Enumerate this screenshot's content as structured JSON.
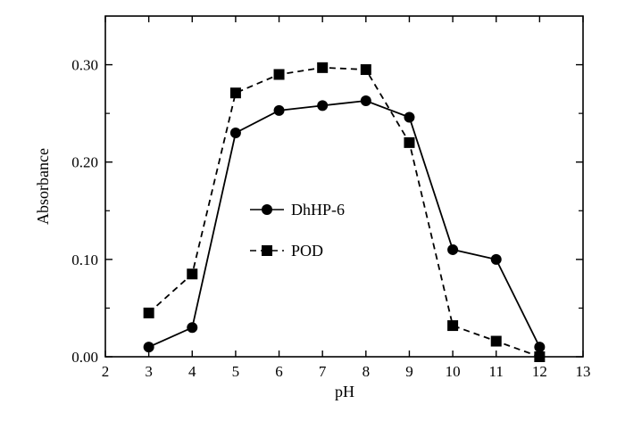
{
  "chart_data": {
    "type": "line",
    "xlabel": "pH",
    "ylabel": "Absorbance",
    "xlim": [
      2,
      13
    ],
    "ylim": [
      0,
      0.35
    ],
    "xticks": [
      2,
      3,
      4,
      5,
      6,
      7,
      8,
      9,
      10,
      11,
      12,
      13
    ],
    "yticks": [
      0,
      0.1,
      0.2,
      0.3
    ],
    "ytick_labels": [
      "0.00",
      "0.10",
      "0.20",
      "0.30"
    ],
    "grid": false,
    "legend_position": "center-left",
    "series": [
      {
        "name": "DhHP-6",
        "marker": "circle",
        "line_style": "solid",
        "color": "#000000",
        "x": [
          3,
          4,
          5,
          6,
          7,
          8,
          9,
          10,
          11,
          12
        ],
        "y": [
          0.01,
          0.03,
          0.23,
          0.253,
          0.258,
          0.263,
          0.246,
          0.11,
          0.1,
          0.01
        ]
      },
      {
        "name": "POD",
        "marker": "square",
        "line_style": "dashed",
        "color": "#000000",
        "x": [
          3,
          4,
          5,
          6,
          7,
          8,
          9,
          10,
          11,
          12
        ],
        "y": [
          0.045,
          0.085,
          0.271,
          0.29,
          0.297,
          0.295,
          0.22,
          0.032,
          0.016,
          0.0
        ]
      }
    ]
  }
}
